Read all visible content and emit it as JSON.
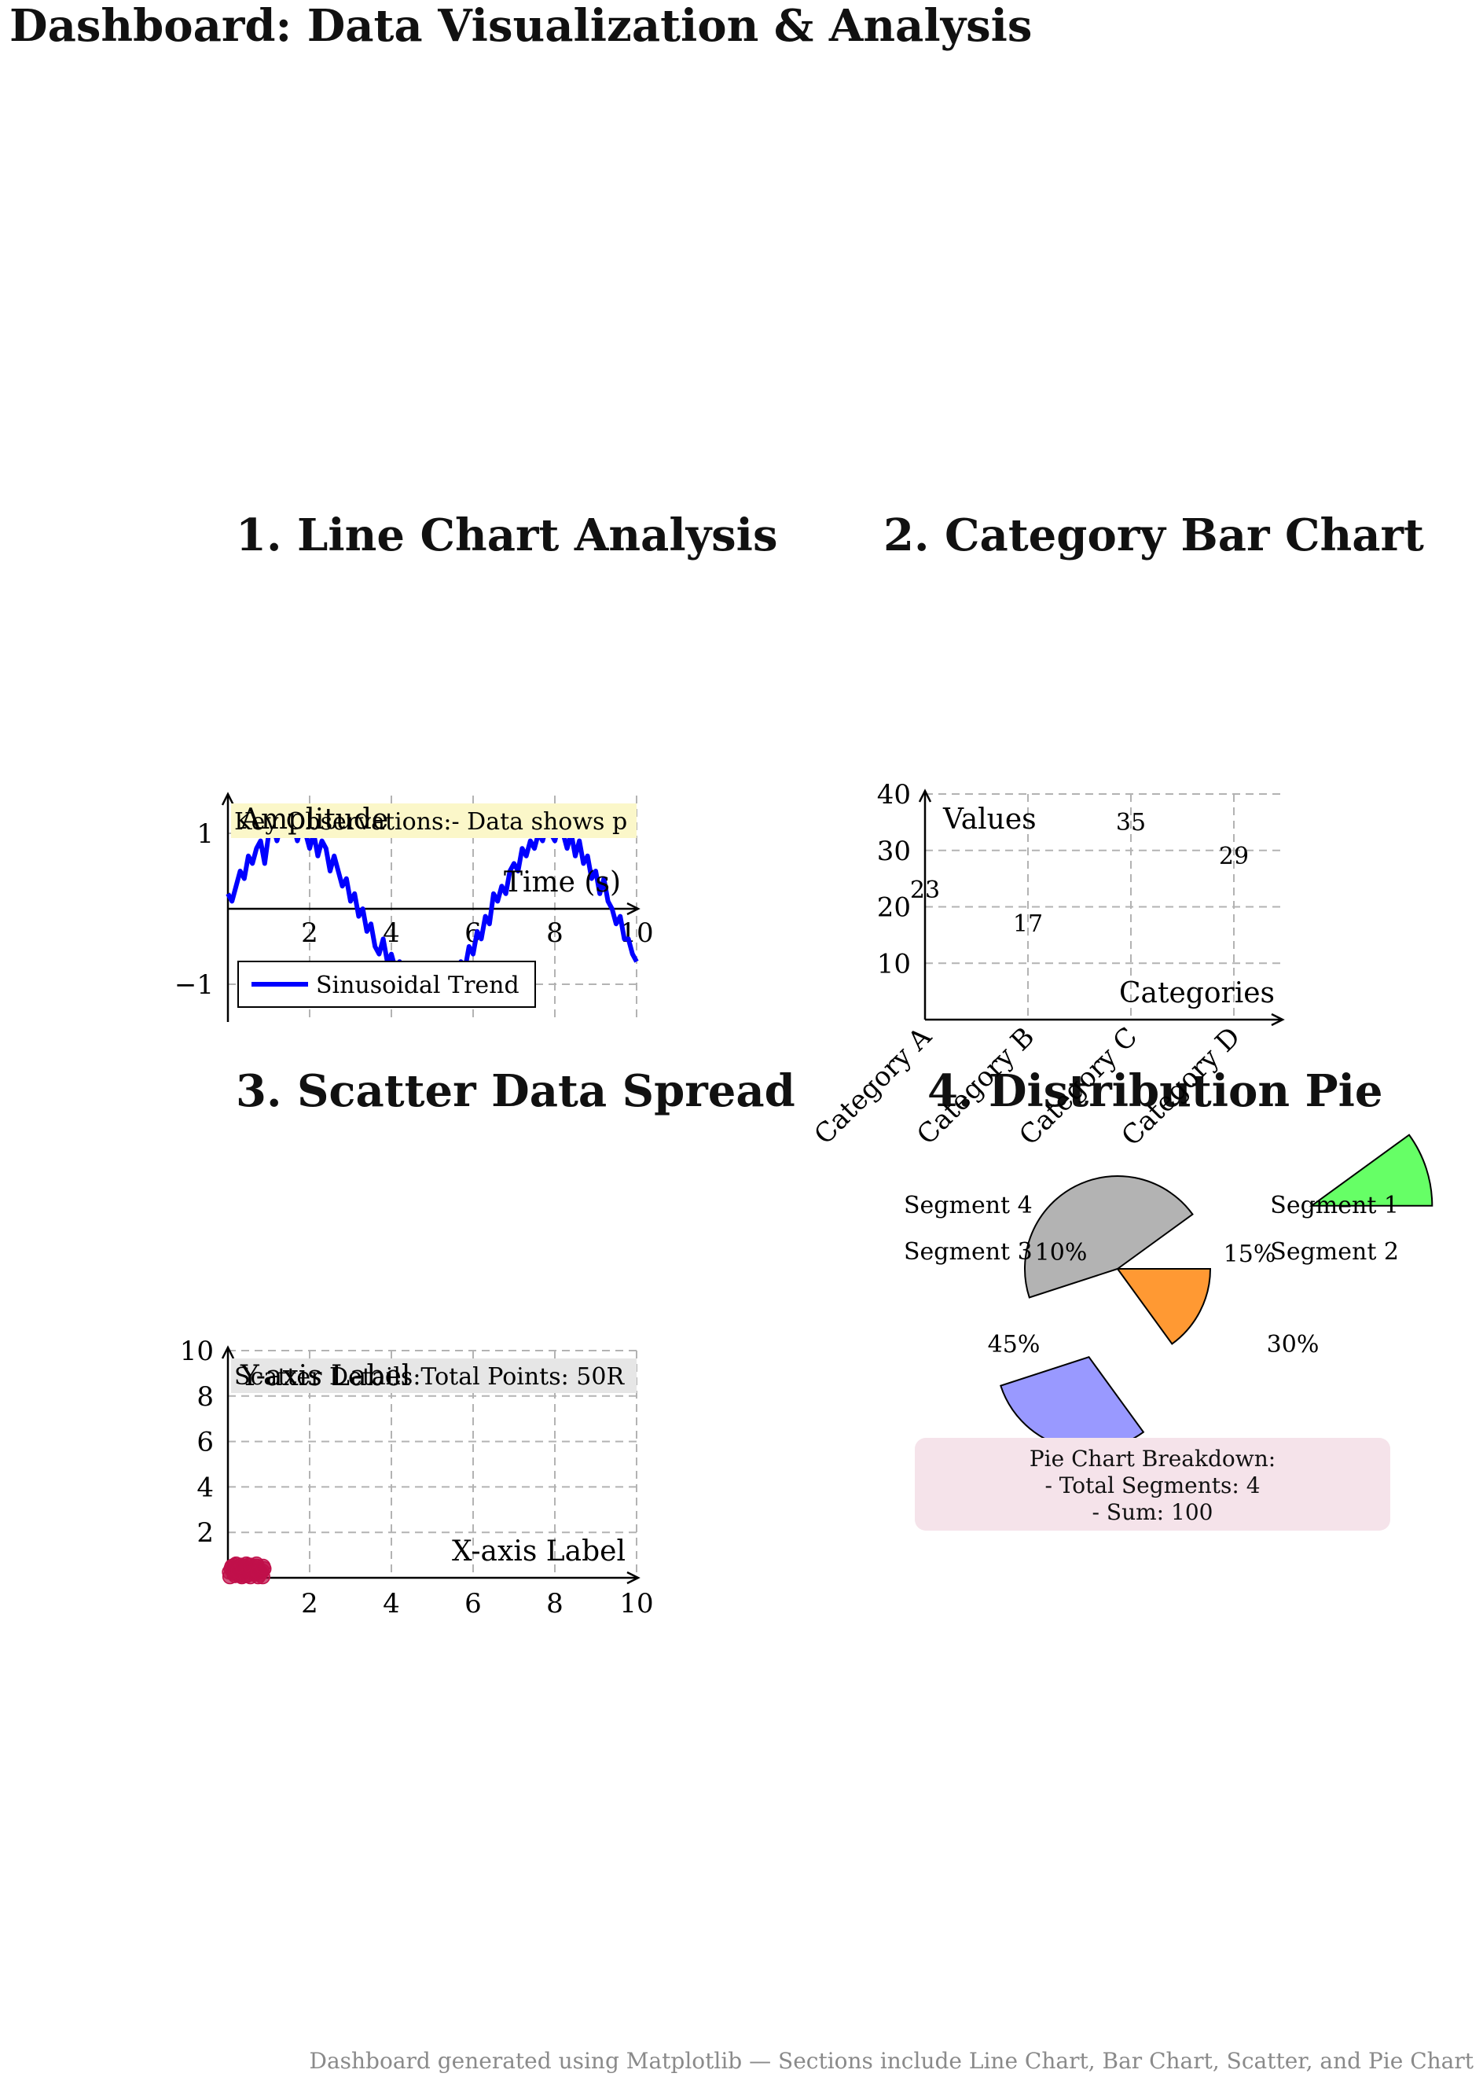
{
  "title": "Dashboard: Data Visualization & Analysis",
  "sections": {
    "line": "1. Line Chart Analysis",
    "bar": "2. Category Bar Chart",
    "scatter": "3. Scatter Data Spread",
    "pie": "4. Distribution Pie"
  },
  "line_note": "Key Observations:- Data shows p",
  "scatter_note": "Scatter Details:Total Points: 50R",
  "pie_note": {
    "line1": "Pie Chart Breakdown:",
    "line2": "- Total Segments: 4",
    "line3": "- Sum: 100"
  },
  "footer": "Dashboard generated using Matplotlib — Sections include Line Chart, Bar Chart, Scatter, and Pie Chart",
  "colors": {
    "line": "#0000ff",
    "line_note_bg": "#fbf7c9",
    "scatter_point": "#c0104a",
    "scatter_note_bg": "#e6e6e6",
    "pie_note_bg": "#f5e3ea",
    "pie": [
      "#ff9933",
      "#9999ff",
      "#b3b3b3",
      "#66ff66"
    ]
  },
  "chart_data": [
    {
      "type": "line",
      "xlabel": "Time (s)",
      "ylabel": "Amplitude",
      "xlim": [
        0,
        10
      ],
      "ylim": [
        -1.5,
        1.5
      ],
      "xticks": [
        2,
        4,
        6,
        8,
        10
      ],
      "yticks": [
        -1,
        1
      ],
      "grid": true,
      "legend_position": "bottom-left",
      "series": [
        {
          "name": "Sinusoidal Trend",
          "x": [
            0,
            0.1,
            0.2,
            0.3,
            0.4,
            0.5,
            0.6,
            0.7,
            0.8,
            0.9,
            1.0,
            1.1,
            1.2,
            1.3,
            1.4,
            1.5,
            1.6,
            1.7,
            1.8,
            1.9,
            2.0,
            2.1,
            2.2,
            2.3,
            2.4,
            2.5,
            2.6,
            2.7,
            2.8,
            2.9,
            3.0,
            3.1,
            3.2,
            3.3,
            3.4,
            3.5,
            3.6,
            3.7,
            3.8,
            3.9,
            4.0,
            4.1,
            4.2,
            4.3,
            4.4,
            4.5,
            4.6,
            4.7,
            4.8,
            4.9,
            5.0,
            5.1,
            5.2,
            5.3,
            5.4,
            5.5,
            5.6,
            5.7,
            5.8,
            5.9,
            6.0,
            6.1,
            6.2,
            6.3,
            6.4,
            6.5,
            6.6,
            6.7,
            6.8,
            6.9,
            7.0,
            7.1,
            7.2,
            7.3,
            7.4,
            7.5,
            7.6,
            7.7,
            7.8,
            7.9,
            8.0,
            8.1,
            8.2,
            8.3,
            8.4,
            8.5,
            8.6,
            8.7,
            8.8,
            8.9,
            9.0,
            9.1,
            9.2,
            9.3,
            9.4,
            9.5,
            9.6,
            9.7,
            9.8,
            9.9,
            10.0
          ],
          "y": [
            0.2,
            0.1,
            0.3,
            0.5,
            0.4,
            0.7,
            0.6,
            0.8,
            0.9,
            0.6,
            1.0,
            1.1,
            0.9,
            1.1,
            1.0,
            1.2,
            1.1,
            0.9,
            1.1,
            1.0,
            0.8,
            1.0,
            0.7,
            0.9,
            0.8,
            0.5,
            0.7,
            0.5,
            0.3,
            0.4,
            0.1,
            0.2,
            -0.1,
            0.0,
            -0.3,
            -0.2,
            -0.5,
            -0.6,
            -0.4,
            -0.7,
            -0.6,
            -0.8,
            -0.7,
            -0.9,
            -1.0,
            -0.8,
            -1.1,
            -0.9,
            -1.0,
            -1.2,
            -0.9,
            -1.1,
            -1.0,
            -1.2,
            -0.9,
            -0.8,
            -1.0,
            -0.7,
            -0.8,
            -0.5,
            -0.6,
            -0.3,
            -0.4,
            -0.1,
            -0.2,
            0.2,
            0.1,
            0.3,
            0.2,
            0.5,
            0.6,
            0.5,
            0.8,
            0.7,
            0.9,
            0.8,
            1.0,
            0.9,
            1.1,
            1.0,
            0.9,
            1.1,
            1.0,
            0.8,
            1.0,
            0.7,
            0.9,
            0.6,
            0.7,
            0.4,
            0.5,
            0.2,
            0.4,
            0.1,
            0.0,
            -0.2,
            -0.1,
            -0.4,
            -0.4,
            -0.6,
            -0.7
          ]
        }
      ]
    },
    {
      "type": "bar",
      "xlabel": "Categories",
      "ylabel": "Values",
      "ylim": [
        0,
        40
      ],
      "yticks": [
        10,
        20,
        30,
        40
      ],
      "grid": true,
      "categories": [
        "Category A",
        "Category B",
        "Category C",
        "Category D"
      ],
      "values": [
        23,
        17,
        35,
        29
      ]
    },
    {
      "type": "scatter",
      "xlabel": "X-axis Label",
      "ylabel": "Y-axis Label",
      "xlim": [
        0,
        10
      ],
      "ylim": [
        0,
        10
      ],
      "xticks": [
        2,
        4,
        6,
        8,
        10
      ],
      "yticks": [
        2,
        4,
        6,
        8,
        10
      ],
      "grid": true,
      "x": [
        0.05,
        0.12,
        0.2,
        0.28,
        0.35,
        0.42,
        0.5,
        0.58,
        0.65,
        0.72,
        0.8,
        0.88,
        0.1,
        0.18,
        0.25,
        0.32,
        0.4,
        0.48,
        0.55,
        0.62,
        0.7,
        0.78,
        0.85,
        0.15,
        0.22,
        0.3,
        0.38,
        0.45,
        0.52,
        0.6,
        0.68,
        0.75,
        0.08,
        0.16,
        0.24,
        0.34,
        0.44,
        0.54,
        0.64,
        0.74,
        0.84,
        0.04,
        0.14,
        0.26,
        0.36,
        0.46,
        0.56,
        0.66,
        0.76,
        0.86
      ],
      "y": [
        0.05,
        0.3,
        0.6,
        0.2,
        0.45,
        0.1,
        0.55,
        0.35,
        0.15,
        0.5,
        0.25,
        0.4,
        0.5,
        0.1,
        0.35,
        0.55,
        0.25,
        0.45,
        0.05,
        0.3,
        0.6,
        0.15,
        0.05,
        0.2,
        0.45,
        0.1,
        0.3,
        0.6,
        0.4,
        0.2,
        0.5,
        0.35,
        0.4,
        0.55,
        0.15,
        0.05,
        0.35,
        0.25,
        0.45,
        0.05,
        0.3,
        0.25,
        0.45,
        0.3,
        0.5,
        0.1,
        0.55,
        0.15,
        0.25,
        0.5
      ]
    },
    {
      "type": "pie",
      "labels": [
        "Segment 1",
        "Segment 2",
        "Segment 3",
        "Segment 4"
      ],
      "values": [
        15,
        30,
        45,
        10
      ],
      "percent_labels": [
        "15%",
        "30%",
        "45%",
        "10%"
      ]
    }
  ]
}
